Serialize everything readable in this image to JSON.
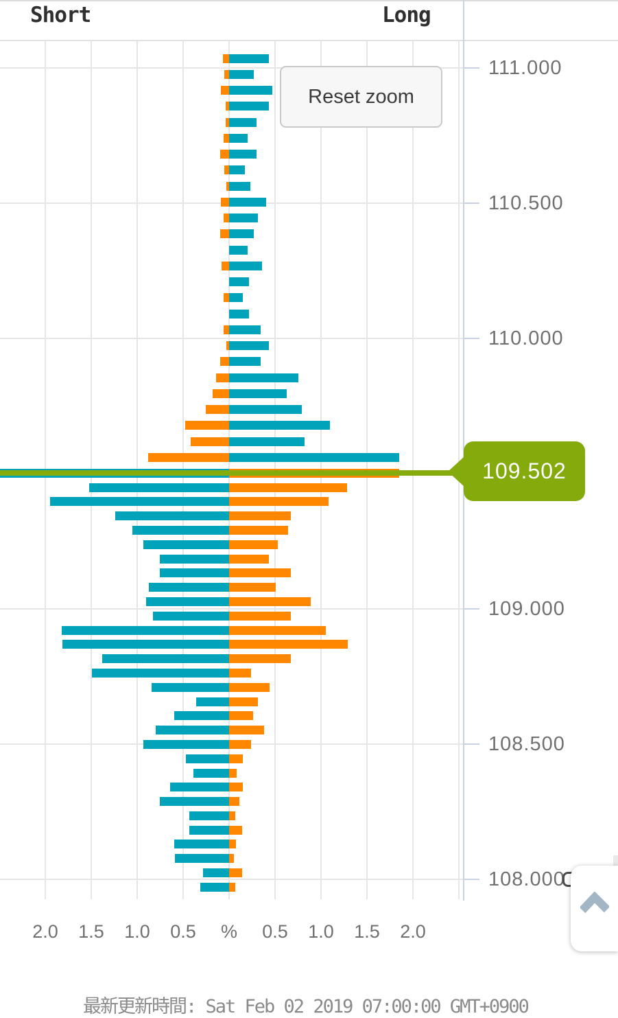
{
  "header": {
    "short_label": "Short",
    "long_label": "Long"
  },
  "reset_zoom": {
    "label": "Reset zoom"
  },
  "current_price": {
    "label": "109.502",
    "value": 109.502
  },
  "footer": {
    "last_update": "最新更新時間: Sat Feb 02 2019 07:00:00 GMT+0900"
  },
  "colors": {
    "teal": "#00a3ba",
    "orange": "#ff8700",
    "green": "#86ab0c",
    "grid": "#e6e6e6",
    "axis": "#c9d1e4",
    "label_gray": "#707070"
  },
  "icons": {
    "scroll_top": "chevron-up-icon"
  },
  "chart_data": {
    "type": "bar",
    "orientation": "horizontal-diverging",
    "title": "",
    "xlabel": "%",
    "ylabel": "price",
    "x_axis": {
      "unit_label": "%",
      "tick_labels": [
        "2.0",
        "1.5",
        "1.0",
        "0.5",
        "%",
        "0.5",
        "1.0",
        "1.5",
        "2.0"
      ],
      "tick_values": [
        -2.0,
        -1.5,
        -1.0,
        -0.5,
        0,
        0.5,
        1.0,
        1.5,
        2.0
      ],
      "gridline_values": [
        -2.5,
        -2.0,
        -1.5,
        -1.0,
        -0.5,
        0,
        0.5,
        1.0,
        1.5,
        2.0,
        2.5
      ],
      "range": [
        -2.52,
        2.55
      ]
    },
    "y_axis": {
      "tick_labels": [
        "111.000",
        "110.500",
        "110.000",
        "109.000",
        "108.500",
        "108.000"
      ],
      "tick_values": [
        111.0,
        110.5,
        110.0,
        109.0,
        108.5,
        108.0
      ],
      "range": [
        107.94,
        111.07
      ]
    },
    "legend": {
      "left_side": "Short",
      "right_side": "Long",
      "rule_above_current": "long=teal right, short=orange left",
      "rule_below_current": "short=teal left, long=orange right"
    },
    "current_price_line": {
      "value": 109.502,
      "color": "#86ab0c"
    },
    "rows_format": "[price, short_pct, long_pct]",
    "rows": [
      [
        111.036,
        0.065,
        0.43
      ],
      [
        110.977,
        0.05,
        0.27
      ],
      [
        110.918,
        0.09,
        0.47
      ],
      [
        110.859,
        0.04,
        0.43
      ],
      [
        110.8,
        0.04,
        0.3
      ],
      [
        110.741,
        0.06,
        0.2
      ],
      [
        110.682,
        0.1,
        0.3
      ],
      [
        110.623,
        0.05,
        0.17
      ],
      [
        110.564,
        0.03,
        0.23
      ],
      [
        110.505,
        0.09,
        0.4
      ],
      [
        110.446,
        0.06,
        0.31
      ],
      [
        110.387,
        0.1,
        0.27
      ],
      [
        110.328,
        0.0,
        0.2
      ],
      [
        110.269,
        0.08,
        0.36
      ],
      [
        110.21,
        0.0,
        0.22
      ],
      [
        110.151,
        0.06,
        0.15
      ],
      [
        110.092,
        0.0,
        0.22
      ],
      [
        110.033,
        0.06,
        0.34
      ],
      [
        109.974,
        0.03,
        0.43
      ],
      [
        109.915,
        0.1,
        0.34
      ],
      [
        109.856,
        0.14,
        0.75
      ],
      [
        109.797,
        0.18,
        0.63
      ],
      [
        109.738,
        0.25,
        0.79
      ],
      [
        109.679,
        0.48,
        1.1
      ],
      [
        109.62,
        0.42,
        0.82
      ],
      [
        109.561,
        0.88,
        1.85
      ],
      [
        109.502,
        2.49,
        1.85
      ],
      [
        109.449,
        1.52,
        1.28
      ],
      [
        109.397,
        1.95,
        1.08
      ],
      [
        109.344,
        1.24,
        0.67
      ],
      [
        109.291,
        1.05,
        0.64
      ],
      [
        109.238,
        0.93,
        0.53
      ],
      [
        109.186,
        0.75,
        0.43
      ],
      [
        109.133,
        0.75,
        0.67
      ],
      [
        109.08,
        0.87,
        0.51
      ],
      [
        109.027,
        0.9,
        0.89
      ],
      [
        108.975,
        0.83,
        0.67
      ],
      [
        108.922,
        1.82,
        1.05
      ],
      [
        108.869,
        1.81,
        1.29
      ],
      [
        108.816,
        1.38,
        0.67
      ],
      [
        108.764,
        1.49,
        0.24
      ],
      [
        108.711,
        0.84,
        0.44
      ],
      [
        108.658,
        0.36,
        0.31
      ],
      [
        108.605,
        0.6,
        0.26
      ],
      [
        108.553,
        0.8,
        0.38
      ],
      [
        108.5,
        0.93,
        0.24
      ],
      [
        108.447,
        0.47,
        0.15
      ],
      [
        108.394,
        0.39,
        0.08
      ],
      [
        108.342,
        0.64,
        0.15
      ],
      [
        108.289,
        0.75,
        0.11
      ],
      [
        108.236,
        0.435,
        0.065
      ],
      [
        108.183,
        0.435,
        0.14
      ],
      [
        108.131,
        0.6,
        0.075
      ],
      [
        108.078,
        0.59,
        0.05
      ],
      [
        108.025,
        0.28,
        0.14
      ],
      [
        107.972,
        0.31,
        0.065
      ]
    ]
  }
}
